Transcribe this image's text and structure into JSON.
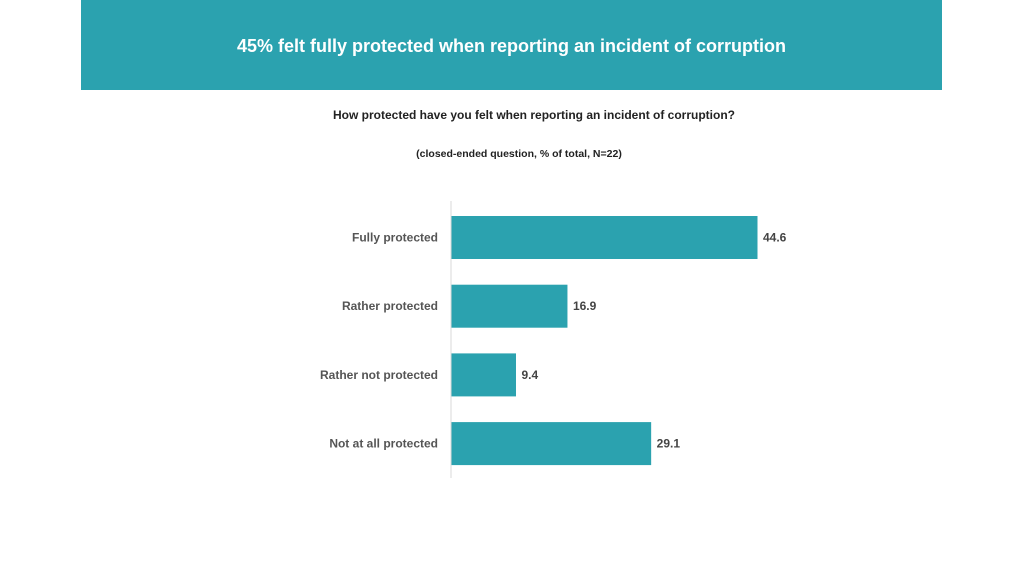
{
  "banner": {
    "title": "45% felt fully protected when reporting an incident of corruption",
    "color": "#2ba2af"
  },
  "chart_data": {
    "type": "bar",
    "orientation": "horizontal",
    "title": "How protected have you felt when reporting an incident of corruption?",
    "subtitle": "(closed-ended question, % of total, N=22)",
    "categories": [
      "Fully protected",
      "Rather protected",
      "Rather not protected",
      "Not at all protected"
    ],
    "values": [
      44.6,
      16.9,
      9.4,
      29.1
    ],
    "value_labels": [
      "44.6",
      "16.9",
      "9.4",
      "29.1"
    ],
    "xlim": [
      0,
      50
    ],
    "grid": false,
    "legend": "none",
    "bar_color": "#2ba2af",
    "axis_color": "#d9d9d9"
  }
}
